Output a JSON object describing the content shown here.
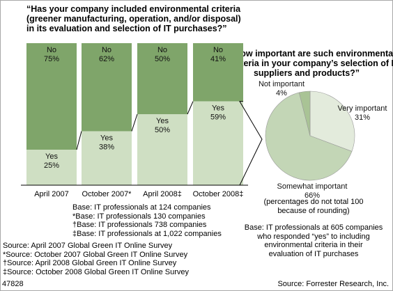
{
  "chart_data": [
    {
      "type": "bar",
      "stacked": true,
      "title_lines": [
        "“Has your company included environmental criteria",
        "(greener manufacturing, operation, and/or disposal)",
        "in its evaluation and selection of IT purchases?”"
      ],
      "categories": [
        "April 2007",
        "October 2007*",
        "April 2008‡",
        "October 2008‡"
      ],
      "series": [
        {
          "name": "Yes",
          "values": [
            25,
            38,
            50,
            59
          ],
          "labels": [
            "25%",
            "38%",
            "50%",
            "59%"
          ]
        },
        {
          "name": "No",
          "values": [
            75,
            62,
            50,
            41
          ],
          "labels": [
            "75%",
            "62%",
            "50%",
            "41%"
          ]
        }
      ],
      "colors": {
        "Yes": "#cfdfc3",
        "No": "#7fa56a",
        "connector": "#000000"
      },
      "ylim": [
        0,
        100
      ]
    },
    {
      "type": "pie",
      "title_lines": [
        "“How important are such environmental",
        "criteria in your company’s selection of IT",
        "suppliers and products?”"
      ],
      "slices": [
        {
          "label": "Very important",
          "value": 31,
          "value_label": "31%",
          "color": "#e3ebdc"
        },
        {
          "label": "Somewhat important",
          "value": 66,
          "value_label": "66%",
          "color": "#c3d6b6"
        },
        {
          "label": "Not important",
          "value": 4,
          "value_label": "4%",
          "color": "#a9c395"
        }
      ]
    }
  ],
  "notes": {
    "base_left": [
      "Base: IT professionals at 124 companies",
      "*Base: IT professionals 130 companies",
      "†Base: IT professionals 738 companies",
      "‡Base: IT professionals at 1,022 companies"
    ],
    "sources": [
      "Source: April 2007 Global Green IT Online Survey",
      "*Source: October 2007 Global Green IT Online Survey",
      "†Source: April 2008 Global Green IT Online Survey",
      "‡Source: October 2008 Global Green IT Online Survey"
    ],
    "rounding": [
      "(percentages do not total 100",
      "because of rounding)"
    ],
    "base_right": [
      "Base: IT professionals at 605 companies",
      "who responded “yes” to including",
      "environmental criteria in their",
      "evaluation of IT purchases"
    ]
  },
  "footer": {
    "id": "47828",
    "source": "Source: Forrester Research, Inc."
  }
}
